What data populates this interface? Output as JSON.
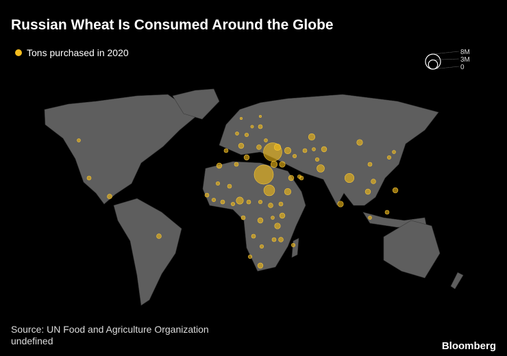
{
  "chart_data": {
    "type": "bubble_map",
    "title": "Russian Wheat Is Consumed Around the Globe",
    "legend_label": "Tons purchased in 2020",
    "color": "#f5bd1f",
    "size_ticks": [
      {
        "value": 8000000,
        "label": "8M"
      },
      {
        "value": 3000000,
        "label": "3M"
      },
      0
    ],
    "values": [
      13000000,
      12000000,
      4200000,
      1000000,
      800000,
      500000,
      600000,
      400000,
      200000,
      200000,
      300000,
      400000,
      1500000,
      1500000,
      1200000,
      1500000,
      500000,
      600000,
      400000,
      1000000,
      1500000,
      1200000,
      2000000,
      500000,
      600000,
      1000000,
      1500000,
      500000,
      3000000,
      600000,
      800000,
      1000000,
      1000000,
      500000,
      400000,
      1200000,
      400000,
      600000,
      600000,
      1000000,
      500000,
      600000,
      600000,
      500000,
      600000,
      500000,
      1800000,
      600000,
      500000,
      800000,
      600000,
      1000000,
      400000,
      600000,
      1000000,
      1200000,
      600000,
      500000,
      600000,
      800000,
      500000,
      1000000,
      500000,
      800000,
      800000,
      600000,
      400000,
      600000,
      1000000
    ],
    "source": "Source: UN Food and Agriculture Organization",
    "note": "undefined",
    "brand": "Bloomberg"
  }
}
